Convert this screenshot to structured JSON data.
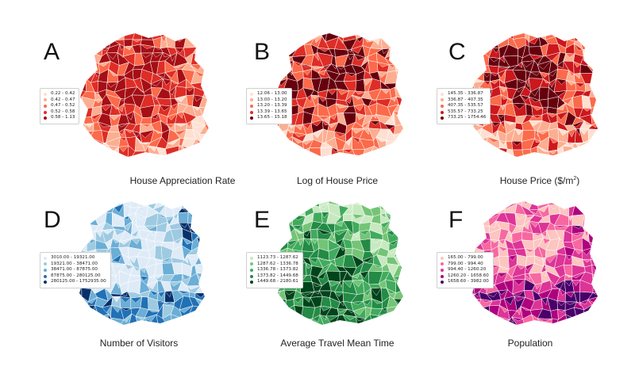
{
  "panels": [
    {
      "letter": "A",
      "caption": "House Appreciation Rate",
      "colors": [
        "#fee0d2",
        "#fcae91",
        "#fb6a4a",
        "#de2d26",
        "#a50f15"
      ],
      "legend": [
        "0.22 - 0.42",
        "0.42 - 0.47",
        "0.47 - 0.52",
        "0.52 - 0.58",
        "0.58 - 1.13"
      ]
    },
    {
      "letter": "B",
      "caption": "Log of House Price",
      "colors": [
        "#fee0d2",
        "#fcae91",
        "#fb6a4a",
        "#de2d26",
        "#67000d"
      ],
      "legend": [
        "12.06 - 13.00",
        "13.00 - 13.20",
        "13.20 - 13.39",
        "13.39 - 13.65",
        "13.65 - 15.18"
      ]
    },
    {
      "letter": "C",
      "caption": "House Price ($/m",
      "caption_sup": "2",
      "caption_tail": ")",
      "colors": [
        "#fee0d2",
        "#fcae91",
        "#fb6a4a",
        "#cb181d",
        "#67000d"
      ],
      "legend": [
        "145.35 - 336.87",
        "336.87 - 407.35",
        "407.35 - 535.57",
        "535.57 - 733.25",
        "733.25 - 1754.46"
      ]
    },
    {
      "letter": "D",
      "caption": "Number of Visitors",
      "colors": [
        "#deebf7",
        "#9ecae1",
        "#6baed6",
        "#2171b5",
        "#08306b"
      ],
      "legend": [
        "3010.00 - 19321.00",
        "19321.00 - 38471.00",
        "38471.00 - 87875.00",
        "87875.00 - 280125.00",
        "280125.00 - 1752935.00"
      ]
    },
    {
      "letter": "E",
      "caption": "Average Travel Mean Time",
      "colors": [
        "#c7e9c0",
        "#74c476",
        "#41ab5d",
        "#238b45",
        "#00441b"
      ],
      "legend": [
        "1123.73 - 1287.62",
        "1287.62 - 1336.78",
        "1336.78 - 1373.82",
        "1373.82 - 1449.68",
        "1449.68 - 2180.61"
      ]
    },
    {
      "letter": "F",
      "caption": "Population",
      "colors": [
        "#fcc5c0",
        "#f768a1",
        "#dd3497",
        "#ae017e",
        "#49006a"
      ],
      "legend": [
        "165.00 - 799.00",
        "799.00 - 994.40",
        "994.40 - 1260.20",
        "1260.20 - 1658.60",
        "1658.60 - 3982.00"
      ]
    }
  ]
}
